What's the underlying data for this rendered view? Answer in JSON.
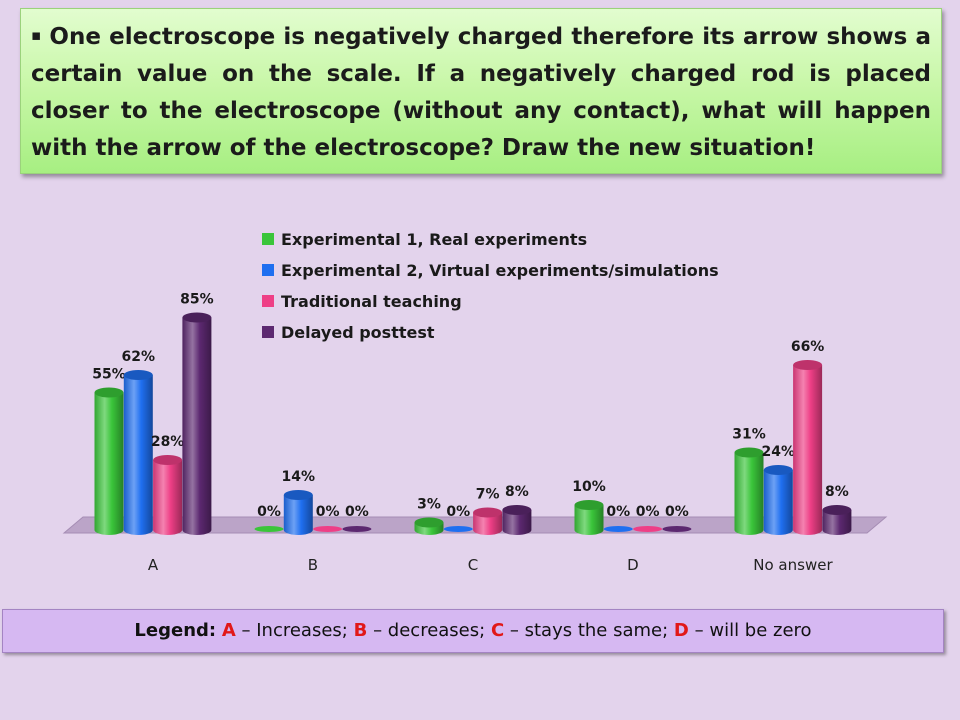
{
  "question": {
    "bullet": "▪",
    "text": "One electroscope is negatively charged therefore its arrow shows a certain value on the scale. If a negatively charged rod is placed closer to the electroscope (without any contact), what will happen with the arrow of the electroscope? Draw the new situation!"
  },
  "chart_data": {
    "type": "bar",
    "categories": [
      "A",
      "B",
      "C",
      "D",
      "No answer"
    ],
    "series": [
      {
        "name": "Experimental 1, Real experiments",
        "values": [
          55,
          0,
          3,
          10,
          31
        ],
        "color": "#3ac53a"
      },
      {
        "name": "Experimental 2, Virtual experiments/simulations",
        "values": [
          62,
          14,
          0,
          0,
          24
        ],
        "color": "#1f6ff0"
      },
      {
        "name": "Traditional teaching",
        "values": [
          28,
          0,
          7,
          0,
          66
        ],
        "color": "#ee3f86"
      },
      {
        "name": "Delayed posttest",
        "values": [
          85,
          0,
          8,
          0,
          8
        ],
        "color": "#5c2870"
      }
    ],
    "value_suffix": "%",
    "ylim": [
      0,
      85
    ],
    "legend_position": "top-center",
    "grid": false
  },
  "legend_box": {
    "label": "Legend:",
    "items": [
      {
        "key": "A",
        "text": "Increases;"
      },
      {
        "key": "B",
        "text": "decreases;"
      },
      {
        "key": "C",
        "text": "stays the same;"
      },
      {
        "key": "D",
        "text": "will be zero"
      }
    ],
    "dash": "–"
  }
}
